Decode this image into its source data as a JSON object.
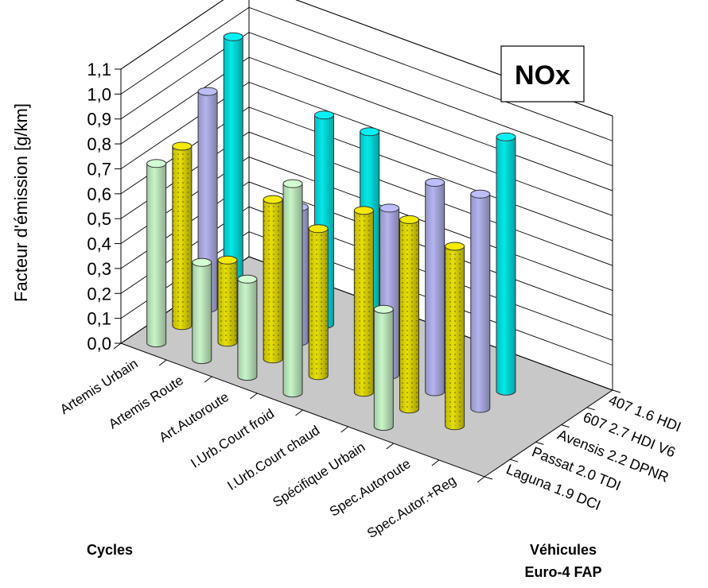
{
  "chart_data": {
    "type": "bar",
    "title": "NOx",
    "ylabel": "Facteur d'émission [g/km]",
    "xlabel": "Cycles",
    "depth_label_lines": [
      "Véhicules",
      "Euro-4 FAP"
    ],
    "ylim": [
      0,
      1.1
    ],
    "yticks": [
      "0,0",
      "0,1",
      "0,2",
      "0,3",
      "0,4",
      "0,5",
      "0,6",
      "0,7",
      "0,8",
      "0,9",
      "1,0",
      "1,1"
    ],
    "categories": [
      "Artemis Urbain",
      "Artemis Route",
      "Art.Autoroute",
      "I.Urb.Court froid",
      "I.Urb.Court chaud",
      "Spécifique Urbain",
      "Spec.Autoroute",
      "Spec.Autor.+Reg"
    ],
    "series": [
      {
        "name": "Laguna 1.9 DCI",
        "values": [
          0.72,
          0.39,
          0.39,
          0.84,
          0.0,
          0.47,
          0.0,
          0.0
        ]
      },
      {
        "name": "Passat 2.0 TDI",
        "values": [
          0.72,
          0.33,
          0.64,
          0.59,
          0.73,
          0.76,
          0.72,
          0.0
        ]
      },
      {
        "name": "Avensis 2.2 DPNR",
        "values": [
          0.87,
          0.0,
          0.54,
          0.0,
          0.67,
          0.84,
          0.86,
          0.0
        ]
      },
      {
        "name": "607 2.7 HDI V6",
        "values": [
          1.02,
          0.0,
          0.84,
          0.84,
          0.0,
          0.0,
          1.02,
          0.0
        ]
      },
      {
        "name": "407 1.6 HDI",
        "values": [
          0.0,
          0.0,
          0.0,
          0.0,
          0.0,
          0.0,
          0.0,
          0.0
        ]
      }
    ],
    "series_colors": [
      "#c8f5c8",
      "#e8e000",
      "#b4b4f0",
      "#00e8e8",
      "#e0d8a0"
    ],
    "grid": true,
    "legend": "depth-axis"
  }
}
